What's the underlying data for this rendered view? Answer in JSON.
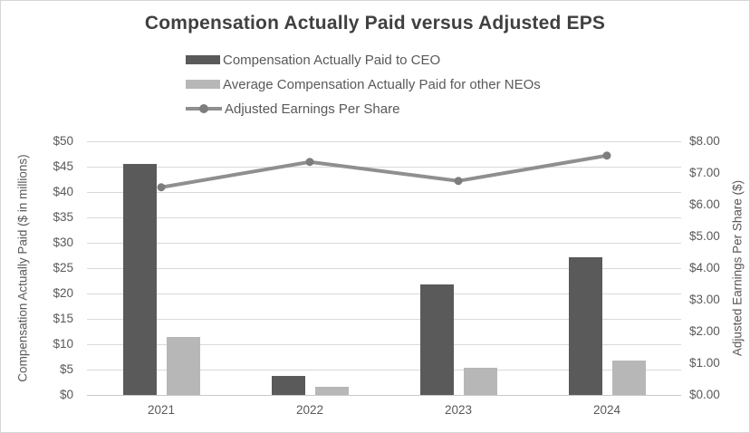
{
  "title": "Compensation Actually Paid versus Adjusted EPS",
  "legend": [
    {
      "label": "Compensation Actually Paid to CEO",
      "type": "bar",
      "color": "#5a5a5a"
    },
    {
      "label": "Average Compensation Actually Paid for other NEOs",
      "type": "bar",
      "color": "#b7b7b7"
    },
    {
      "label": "Adjusted Earnings Per Share",
      "type": "line",
      "color": "#8f8f8f",
      "marker_color": "#7d7d7d"
    }
  ],
  "chart_data": {
    "type": "bar",
    "subtype": "grouped bars with secondary-axis line",
    "categories": [
      "2021",
      "2022",
      "2023",
      "2024"
    ],
    "series": [
      {
        "name": "Compensation Actually Paid to CEO",
        "type": "bar",
        "axis": "left",
        "color": "#5a5a5a",
        "values": [
          45.5,
          3.7,
          21.8,
          27.1
        ]
      },
      {
        "name": "Average Compensation Actually Paid for other NEOs",
        "type": "bar",
        "axis": "left",
        "color": "#b7b7b7",
        "values": [
          11.5,
          1.6,
          5.3,
          6.7
        ]
      },
      {
        "name": "Adjusted Earnings Per Share",
        "type": "line",
        "axis": "right",
        "color": "#8f8f8f",
        "marker_color": "#7d7d7d",
        "values": [
          6.55,
          7.35,
          6.75,
          7.55
        ]
      }
    ],
    "title": "Compensation Actually Paid versus Adjusted EPS",
    "xlabel": "",
    "left_axis": {
      "label": "Compensation Actually Paid ($ in millions)",
      "min": 0,
      "max": 50,
      "step": 5,
      "tick_labels_top_to_bottom": [
        "$50",
        "$45",
        "$40",
        "$35",
        "$30",
        "$25",
        "$20",
        "$15",
        "$10",
        "$5",
        "$0"
      ]
    },
    "right_axis": {
      "label": "Adjusted Earnings Per Share ($)",
      "min": 0,
      "max": 8,
      "step": 1,
      "tick_labels_top_to_bottom": [
        "$8.00",
        "$7.00",
        "$6.00",
        "$5.00",
        "$4.00",
        "$3.00",
        "$2.00",
        "$1.00",
        "$0.00"
      ]
    },
    "grid": true,
    "legend_position": "top-left-stacked"
  },
  "colors": {
    "ceo_bar": "#5a5a5a",
    "neo_bar": "#b7b7b7",
    "eps_line": "#8f8f8f",
    "eps_marker": "#7d7d7d",
    "gridline": "#d9d9d9",
    "text": "#595959",
    "title_text": "#404040",
    "frame_border": "#d6d6d6",
    "background": "#ffffff"
  }
}
